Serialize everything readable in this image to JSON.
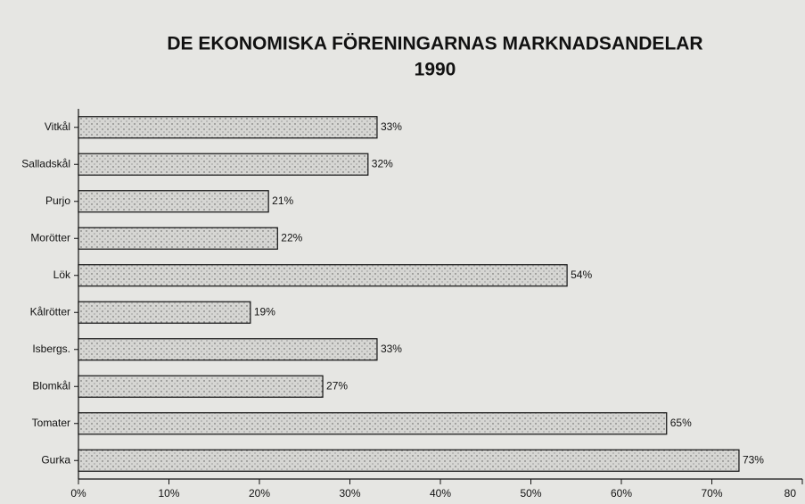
{
  "chart_data": {
    "type": "bar",
    "orientation": "horizontal",
    "title": "DE EKONOMISKA FÖRENINGARNAS MARKNADSANDELAR",
    "subtitle": "1990",
    "categories": [
      "Vitkål",
      "Salladskål",
      "Purjo",
      "Morötter",
      "Lök",
      "Kålrötter",
      "Isbergs.",
      "Blomkål",
      "Tomater",
      "Gurka"
    ],
    "values": [
      33,
      32,
      21,
      22,
      54,
      19,
      33,
      27,
      65,
      73
    ],
    "value_labels": [
      "33%",
      "32%",
      "21%",
      "22%",
      "54%",
      "19%",
      "33%",
      "27%",
      "65%",
      "73%"
    ],
    "color": "#d9d9d6",
    "xlim": [
      0,
      80
    ],
    "xticks": [
      {
        "value": 0,
        "label": "0%"
      },
      {
        "value": 10,
        "label": "10%"
      },
      {
        "value": 20,
        "label": "20%"
      },
      {
        "value": 30,
        "label": "30%"
      },
      {
        "value": 40,
        "label": "40%"
      },
      {
        "value": 50,
        "label": "50%"
      },
      {
        "value": 60,
        "label": "60%"
      },
      {
        "value": 70,
        "label": "70%"
      },
      80
    ]
  }
}
